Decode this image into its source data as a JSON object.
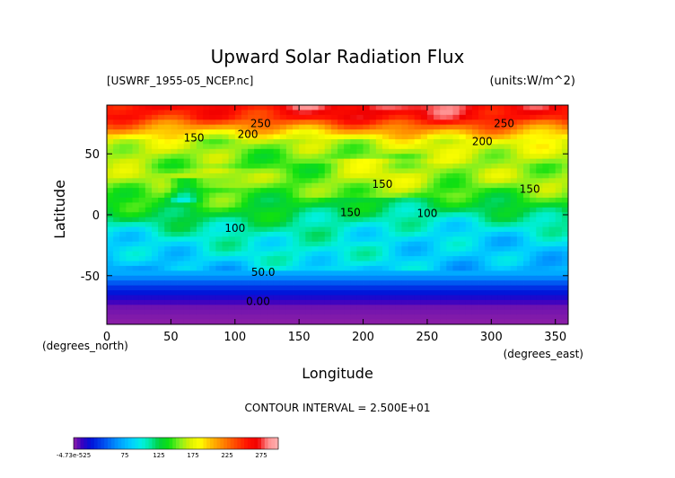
{
  "chart_data": {
    "type": "heatmap",
    "title": "Upward Solar Radiation Flux",
    "file_label": "[USWRF_1955-05_NCEP.nc]",
    "units_label": "(units:W/m^2)",
    "xlabel": "Longitude",
    "ylabel": "Latitude",
    "x_unit_label": "(degrees_east)",
    "y_unit_label": "(degrees_north)",
    "xlim": [
      0,
      360
    ],
    "ylim": [
      -90,
      90
    ],
    "x_ticks": [
      0,
      50,
      100,
      150,
      200,
      250,
      300,
      350
    ],
    "y_ticks": [
      -50,
      0,
      50
    ],
    "contour_interval_label": "CONTOUR INTERVAL = 2.500E+01",
    "colorbar": {
      "min": -4.73e-05,
      "max": 300,
      "tick_labels": [
        {
          "value": 0,
          "label": "-4.73e-525"
        },
        {
          "value": 75,
          "label": "75"
        },
        {
          "value": 125,
          "label": "125"
        },
        {
          "value": 175,
          "label": "175"
        },
        {
          "value": 225,
          "label": "225"
        },
        {
          "value": 275,
          "label": "275"
        }
      ]
    },
    "contour_labels": [
      {
        "lon": 120,
        "lat": 72,
        "text": "250"
      },
      {
        "lon": 68,
        "lat": 60,
        "text": "150"
      },
      {
        "lon": 110,
        "lat": 63,
        "text": "200"
      },
      {
        "lon": 310,
        "lat": 72,
        "text": "250"
      },
      {
        "lon": 293,
        "lat": 57,
        "text": "200"
      },
      {
        "lon": 215,
        "lat": 22,
        "text": "150"
      },
      {
        "lon": 330,
        "lat": 18,
        "text": "150"
      },
      {
        "lon": 190,
        "lat": -1,
        "text": "150"
      },
      {
        "lon": 250,
        "lat": -2,
        "text": "100"
      },
      {
        "lon": 100,
        "lat": -14,
        "text": "100"
      },
      {
        "lon": 122,
        "lat": -50,
        "text": "50.0"
      },
      {
        "lon": 118,
        "lat": -74,
        "text": "0.00"
      }
    ],
    "zonal_profile": {
      "note_lat": [
        -90,
        -75,
        -60,
        -52,
        -45,
        -35,
        -20,
        -10,
        0,
        10,
        20,
        30,
        40,
        50,
        60,
        70,
        80,
        90
      ],
      "values": [
        0,
        5,
        35,
        60,
        80,
        90,
        95,
        105,
        120,
        135,
        145,
        155,
        150,
        160,
        170,
        210,
        255,
        270
      ]
    }
  }
}
